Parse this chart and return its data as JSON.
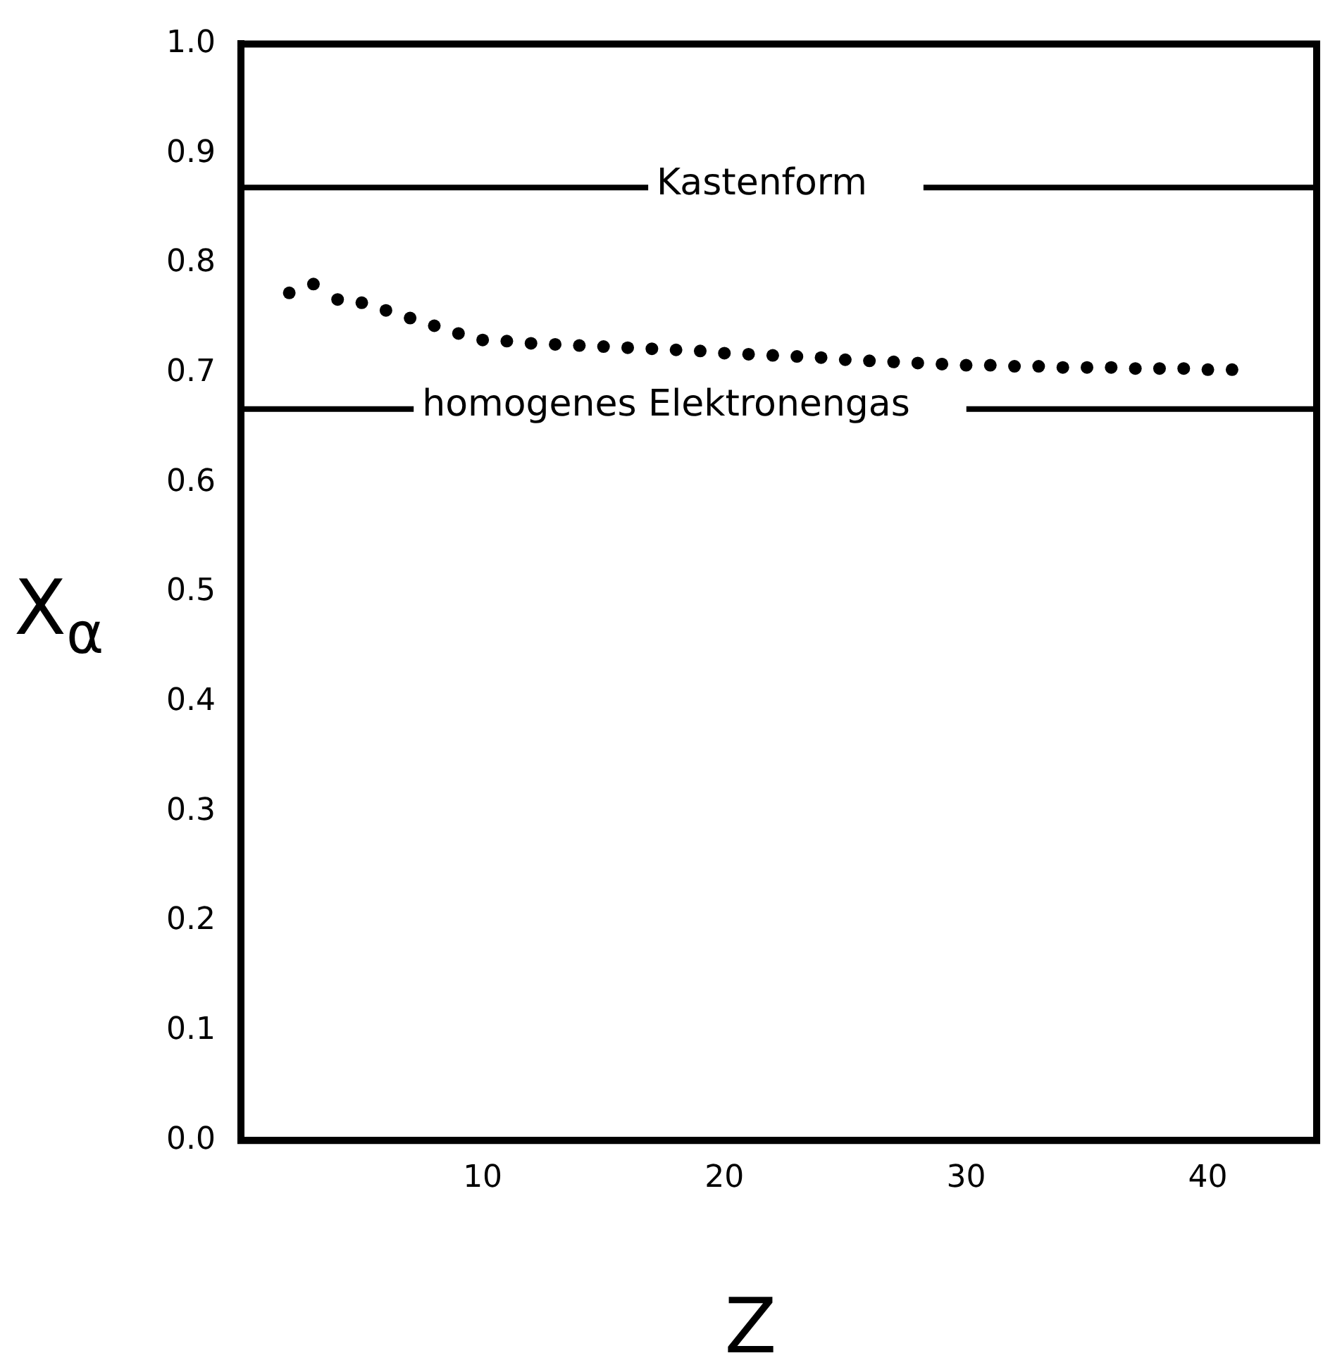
{
  "chart_data": {
    "type": "scatter",
    "xlabel": "Z",
    "ylabel": "X$_{α}$",
    "x": [
      2,
      3,
      4,
      5,
      6,
      7,
      8,
      9,
      10,
      11,
      12,
      13,
      14,
      15,
      16,
      17,
      18,
      19,
      20,
      21,
      22,
      23,
      24,
      25,
      26,
      27,
      28,
      29,
      30,
      31,
      32,
      33,
      34,
      35,
      36,
      37,
      38,
      39,
      40,
      41
    ],
    "series": [
      {
        "color": "#000000",
        "values": [
          0.773,
          0.781,
          0.767,
          0.764,
          0.757,
          0.75,
          0.743,
          0.736,
          0.73,
          0.729,
          0.727,
          0.726,
          0.725,
          0.724,
          0.723,
          0.722,
          0.721,
          0.72,
          0.718,
          0.717,
          0.716,
          0.715,
          0.714,
          0.712,
          0.711,
          0.71,
          0.709,
          0.708,
          0.707,
          0.707,
          0.706,
          0.706,
          0.705,
          0.705,
          0.705,
          0.704,
          0.704,
          0.704,
          0.703,
          0.703
        ]
      }
    ],
    "xlim": [
      0,
      44.5
    ],
    "xticks": [
      10,
      20,
      30,
      40
    ],
    "ylim": [
      0,
      1
    ],
    "yticks": [
      {
        "value": 0,
        "label": "0.0"
      },
      0.1,
      0.2,
      0.3,
      0.4,
      0.5,
      0.6,
      0.7,
      0.8,
      0.9,
      {
        "value": 1,
        "label": "1.0"
      }
    ],
    "ref_lines": [
      {
        "axis": "y",
        "value": 0.869,
        "label": "Kastenform",
        "color": "#000000"
      },
      {
        "axis": "y",
        "value": 0.667,
        "label": "homogenes Elektronengas",
        "color": "#000000"
      }
    ],
    "marker": "circle",
    "grid": false,
    "legend": false
  }
}
